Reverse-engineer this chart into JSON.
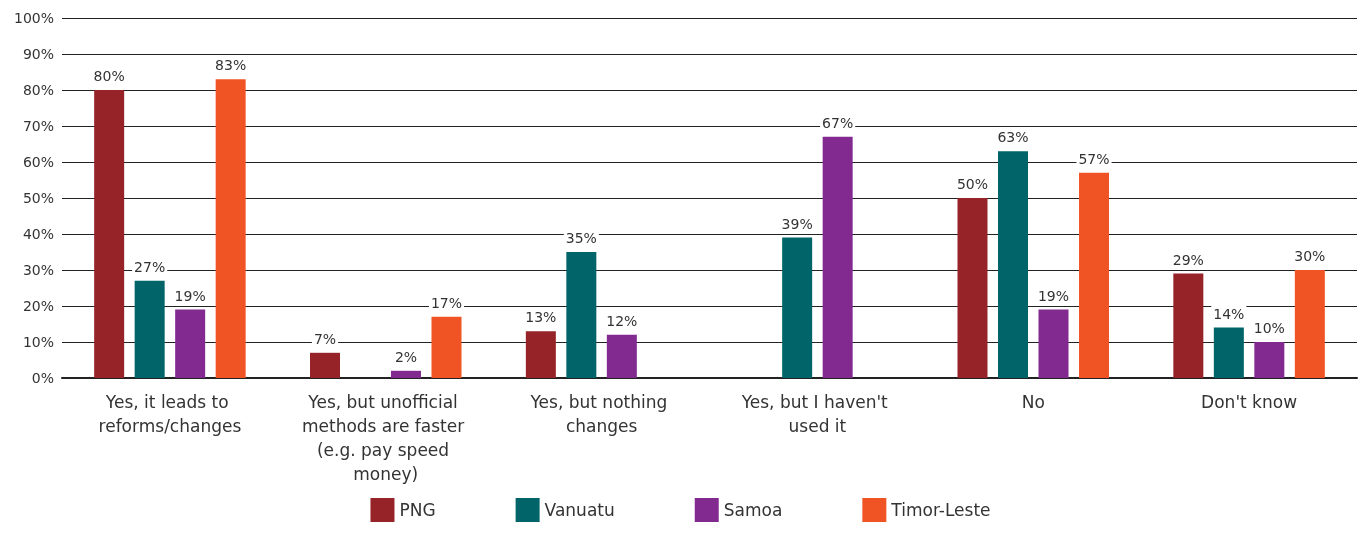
{
  "chart_data": {
    "type": "bar",
    "categories": [
      "Yes, it leads to reforms/changes",
      "Yes, but unofficial methods are faster (e.g. pay speed money)",
      "Yes, but nothing changes",
      "Yes, but I haven't used it",
      "No",
      "Don't know"
    ],
    "series": [
      {
        "name": "PNG",
        "color": "#952328",
        "values": [
          80,
          7,
          13,
          null,
          50,
          29
        ],
        "value_labels": [
          "80%",
          "7%",
          "13%",
          null,
          "50%",
          "29%"
        ]
      },
      {
        "name": "Vanuatu",
        "color": "#006468",
        "values": [
          27,
          null,
          35,
          39,
          63,
          14
        ],
        "value_labels": [
          "27%",
          null,
          "35%",
          "39%",
          "63%",
          "14%"
        ]
      },
      {
        "name": "Samoa",
        "color": "#832a91",
        "values": [
          19,
          2,
          12,
          67,
          19,
          10
        ],
        "value_labels": [
          "19%",
          "2%",
          "12%",
          "67%",
          "19%",
          "10%"
        ]
      },
      {
        "name": "Timor-Leste",
        "color": "#f15424",
        "values": [
          83,
          17,
          null,
          null,
          57,
          30
        ],
        "value_labels": [
          "83%",
          "17%",
          null,
          null,
          "57%",
          "30%"
        ]
      }
    ],
    "ylim": [
      0,
      100
    ],
    "yticks": [
      {
        "value": 0,
        "label": "0%"
      },
      {
        "value": 10,
        "label": "10%"
      },
      {
        "value": 20,
        "label": "20%"
      },
      {
        "value": 30,
        "label": "30%"
      },
      {
        "value": 40,
        "label": "40%"
      },
      {
        "value": 50,
        "label": "50%"
      },
      {
        "value": 60,
        "label": "60%"
      },
      {
        "value": 70,
        "label": "70%"
      },
      {
        "value": 80,
        "label": "80%"
      },
      {
        "value": 90,
        "label": "90%"
      },
      {
        "value": 100,
        "label": "100%"
      }
    ],
    "grid": "y",
    "legend": "bottom"
  }
}
